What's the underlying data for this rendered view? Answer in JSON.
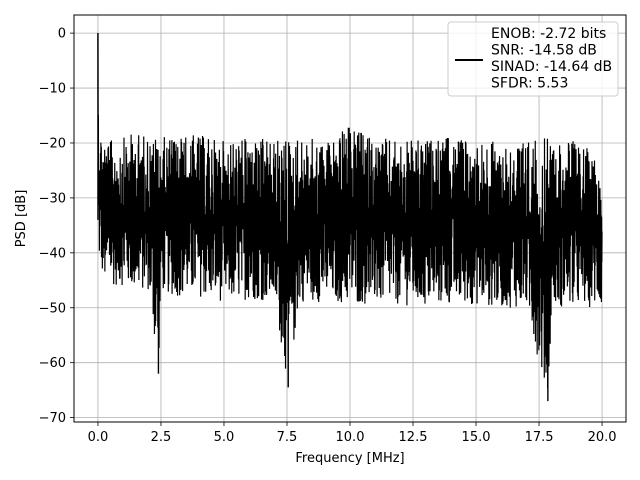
{
  "chart_data": {
    "type": "line",
    "title": "",
    "xlabel": "Frequency [MHz]",
    "ylabel": "PSD [dB]",
    "xlim": [
      -0.95,
      20.95
    ],
    "ylim": [
      -70.8,
      3.3
    ],
    "xticks": [
      0.0,
      2.5,
      5.0,
      7.5,
      10.0,
      12.5,
      15.0,
      17.5,
      20.0
    ],
    "xtick_labels": [
      "0.0",
      "2.5",
      "5.0",
      "7.5",
      "10.0",
      "12.5",
      "15.0",
      "17.5",
      "20.0"
    ],
    "yticks": [
      0,
      -10,
      -20,
      -30,
      -40,
      -50,
      -60,
      -70
    ],
    "ytick_labels": [
      "0",
      "−10",
      "−20",
      "−30",
      "−40",
      "−50",
      "−60",
      "−70"
    ],
    "grid": true,
    "legend_position": "top-right",
    "series": [
      {
        "name": "ENOB: -2.72 bits\nSNR: -14.58 dB\nSINAD: -14.64 dB\nSFDR: 5.53",
        "color": "#000000",
        "x": [
          0.0,
          0.02,
          0.05,
          0.1,
          0.2,
          0.3,
          0.5,
          1.0,
          1.5,
          2.0,
          2.4,
          2.5,
          3.0,
          4.0,
          5.0,
          6.0,
          7.0,
          7.55,
          8.0,
          9.0,
          10.0,
          11.0,
          12.0,
          13.0,
          14.0,
          15.0,
          16.0,
          17.0,
          17.85,
          18.0,
          19.0,
          20.0
        ],
        "y_upper": [
          0.0,
          -12.0,
          -15.0,
          -17.0,
          -18.0,
          -19.0,
          -19.5,
          -19.0,
          -18.0,
          -18.5,
          -18.5,
          -19.0,
          -18.5,
          -18.5,
          -19.5,
          -19.0,
          -19.5,
          -18.5,
          -19.0,
          -19.5,
          -17.0,
          -19.0,
          -19.5,
          -19.5,
          -19.0,
          -19.5,
          -19.5,
          -19.5,
          -19.0,
          -19.5,
          -19.5,
          -23.0
        ],
        "y_lower": [
          -34.0,
          -40.0,
          -42.0,
          -43.0,
          -45.0,
          -46.0,
          -46.0,
          -46.0,
          -47.0,
          -47.0,
          -62.0,
          -47.0,
          -48.0,
          -48.0,
          -49.0,
          -48.5,
          -49.0,
          -64.5,
          -49.0,
          -49.0,
          -49.5,
          -49.5,
          -49.5,
          -50.0,
          -49.5,
          -49.5,
          -50.0,
          -50.0,
          -67.0,
          -50.0,
          -50.0,
          -50.0
        ]
      }
    ]
  }
}
